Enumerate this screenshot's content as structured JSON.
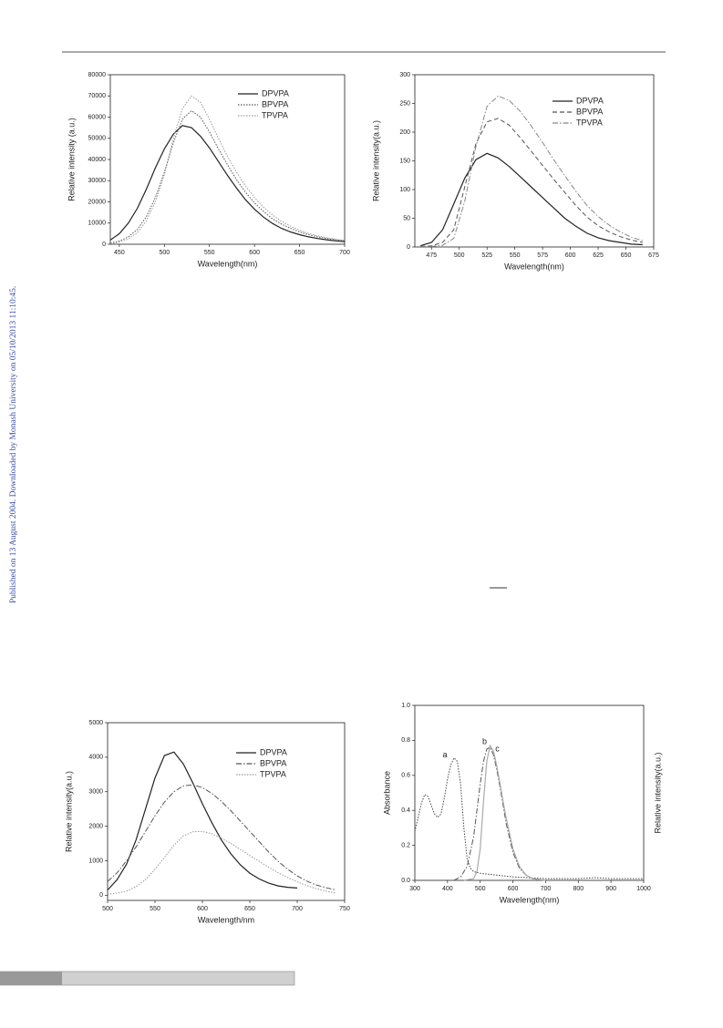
{
  "watermark": "Published on 13 August 2004. Downloaded by Monash University on 05/10/2013 11:10:45.",
  "chart_data": [
    {
      "type": "line",
      "xlabel": "Wavelength(nm)",
      "ylabel": "Relative intensity (a.u.)",
      "legend": "upper right",
      "xlim": [
        440,
        700
      ],
      "xticks": [
        450,
        500,
        550,
        600,
        650,
        700
      ],
      "ylim": [
        0,
        80000
      ],
      "yticks": [
        0,
        10000,
        20000,
        30000,
        40000,
        50000,
        60000,
        70000,
        80000
      ],
      "x": [
        440,
        450,
        460,
        470,
        480,
        490,
        500,
        510,
        520,
        530,
        540,
        550,
        560,
        570,
        580,
        590,
        600,
        610,
        620,
        630,
        640,
        650,
        660,
        670,
        680,
        690,
        700
      ],
      "series": [
        {
          "name": "DPVPA",
          "color": "#222222",
          "line_style": "solid",
          "values": [
            2000,
            5000,
            10000,
            17000,
            26000,
            36000,
            45000,
            52000,
            56000,
            55000,
            51000,
            45500,
            39000,
            32500,
            26500,
            21000,
            16500,
            12800,
            9800,
            7500,
            5800,
            4500,
            3500,
            2700,
            2100,
            1600,
            1200
          ]
        },
        {
          "name": "BPVPA",
          "color": "#555555",
          "line_style": "dotted",
          "values": [
            500,
            1500,
            3500,
            7000,
            13000,
            22000,
            34000,
            48000,
            59000,
            63000,
            60000,
            53000,
            45000,
            37500,
            30500,
            24500,
            19500,
            15500,
            12000,
            9500,
            7500,
            5800,
            4500,
            3500,
            2700,
            2100,
            1600
          ]
        },
        {
          "name": "TPVPA",
          "color": "#999999",
          "line_style": "dotted",
          "values": [
            300,
            1000,
            2500,
            5500,
            11000,
            20000,
            33000,
            50000,
            64000,
            70000,
            67000,
            59000,
            50000,
            41500,
            34000,
            27500,
            22000,
            17500,
            13800,
            10800,
            8500,
            6600,
            5100,
            4000,
            3100,
            2400,
            1800
          ]
        }
      ]
    },
    {
      "type": "line",
      "xlabel": "Wavelength(nm)",
      "ylabel": "Relative intensity(a.u.)",
      "legend": "upper right",
      "xlim": [
        460,
        675
      ],
      "xticks": [
        475,
        500,
        525,
        550,
        575,
        600,
        625,
        650,
        675
      ],
      "ylim": [
        0,
        300
      ],
      "yticks": [
        0,
        50,
        100,
        150,
        200,
        250,
        300
      ],
      "x": [
        465,
        475,
        485,
        495,
        505,
        515,
        525,
        535,
        545,
        555,
        565,
        575,
        585,
        595,
        605,
        615,
        625,
        635,
        645,
        655,
        665
      ],
      "series": [
        {
          "name": "DPVPA",
          "color": "#222222",
          "line_style": "solid",
          "values": [
            2,
            8,
            30,
            75,
            120,
            152,
            163,
            155,
            140,
            122,
            104,
            86,
            68,
            50,
            36,
            24,
            16,
            11,
            8,
            5,
            4
          ]
        },
        {
          "name": "BPVPA",
          "color": "#555555",
          "line_style": "dashed",
          "values": [
            1,
            2,
            8,
            30,
            105,
            180,
            218,
            224,
            212,
            190,
            166,
            142,
            118,
            95,
            72,
            52,
            37,
            26,
            18,
            12,
            8
          ]
        },
        {
          "name": "TPVPA",
          "color": "#888888",
          "line_style": "dashdot",
          "values": [
            1,
            1,
            3,
            15,
            80,
            175,
            245,
            263,
            255,
            236,
            210,
            182,
            152,
            124,
            97,
            72,
            53,
            38,
            26,
            17,
            11
          ]
        }
      ]
    },
    {
      "type": "line",
      "xlabel": "Wavelength/nm",
      "ylabel": "Relative intensity(a.u.)",
      "legend": "upper right",
      "xlim": [
        500,
        750
      ],
      "xticks": [
        500,
        550,
        600,
        650,
        700,
        750
      ],
      "ylim": [
        -150,
        5000
      ],
      "yticks": [
        0,
        1000,
        2000,
        3000,
        4000,
        5000
      ],
      "x": [
        500,
        510,
        520,
        530,
        540,
        550,
        560,
        570,
        580,
        590,
        600,
        610,
        620,
        630,
        640,
        650,
        660,
        670,
        680,
        690,
        700,
        710,
        720,
        730,
        740
      ],
      "series": [
        {
          "name": "DPVPA",
          "color": "#222222",
          "line_style": "solid",
          "values": [
            150,
            450,
            900,
            1600,
            2500,
            3400,
            4050,
            4150,
            3800,
            3250,
            2650,
            2100,
            1600,
            1200,
            880,
            640,
            470,
            350,
            270,
            230,
            210,
            null,
            null,
            null,
            null
          ]
        },
        {
          "name": "BPVPA",
          "color": "#555555",
          "line_style": "dashdot",
          "values": [
            400,
            650,
            1000,
            1400,
            1850,
            2300,
            2700,
            3000,
            3170,
            3200,
            3120,
            2950,
            2720,
            2450,
            2150,
            1850,
            1550,
            1250,
            980,
            750,
            560,
            410,
            300,
            220,
            160
          ]
        },
        {
          "name": "TPVPA",
          "color": "#999999",
          "line_style": "dotted",
          "values": [
            30,
            60,
            120,
            250,
            450,
            750,
            1100,
            1450,
            1720,
            1840,
            1850,
            1780,
            1650,
            1500,
            1330,
            1150,
            980,
            810,
            650,
            510,
            390,
            280,
            190,
            120,
            70
          ]
        }
      ]
    },
    {
      "type": "line",
      "xlabel": "Wavelength(nm)",
      "ylabel": "Absorbance",
      "y2label": "Relative intensity(a.u.)",
      "xlim": [
        300,
        1000
      ],
      "xticks": [
        300,
        400,
        500,
        600,
        700,
        800,
        900,
        1000
      ],
      "ylim": [
        0,
        1.0
      ],
      "yticks": [
        {
          "value": 0,
          "label": "0.0"
        },
        0.2,
        0.4,
        0.6,
        0.8,
        {
          "value": 1,
          "label": "1.0"
        }
      ],
      "series": [
        {
          "name": "a",
          "color": "#444444",
          "line_style": "dotted",
          "x": [
            300,
            310,
            320,
            330,
            340,
            350,
            360,
            370,
            380,
            390,
            400,
            410,
            420,
            430,
            440,
            450,
            460,
            470,
            480,
            500,
            550,
            600,
            700,
            800,
            850,
            900,
            1000
          ],
          "values": [
            0.28,
            0.36,
            0.44,
            0.49,
            0.48,
            0.43,
            0.38,
            0.36,
            0.38,
            0.47,
            0.58,
            0.66,
            0.7,
            0.68,
            0.55,
            0.3,
            0.12,
            0.07,
            0.05,
            0.04,
            0.03,
            0.02,
            0.01,
            0.01,
            0.015,
            0.01,
            0.01
          ]
        },
        {
          "name": "b",
          "color": "#555555",
          "line_style": "dashdot",
          "x": [
            420,
            440,
            460,
            480,
            490,
            500,
            510,
            520,
            530,
            540,
            550,
            560,
            570,
            580,
            600,
            620,
            640,
            660,
            700
          ],
          "values": [
            0,
            0.02,
            0.08,
            0.25,
            0.4,
            0.55,
            0.68,
            0.75,
            0.76,
            0.72,
            0.64,
            0.54,
            0.43,
            0.32,
            0.16,
            0.07,
            0.03,
            0.01,
            0
          ]
        },
        {
          "name": "c",
          "color": "#aaaaaa",
          "line_style": "solid",
          "x": [
            450,
            480,
            490,
            500,
            510,
            520,
            530,
            540,
            550,
            560,
            570,
            580,
            600,
            620,
            640,
            660,
            700
          ],
          "values": [
            0,
            0.01,
            0.05,
            0.18,
            0.45,
            0.68,
            0.77,
            0.74,
            0.66,
            0.56,
            0.45,
            0.35,
            0.18,
            0.08,
            0.03,
            0.01,
            0
          ]
        }
      ]
    }
  ]
}
